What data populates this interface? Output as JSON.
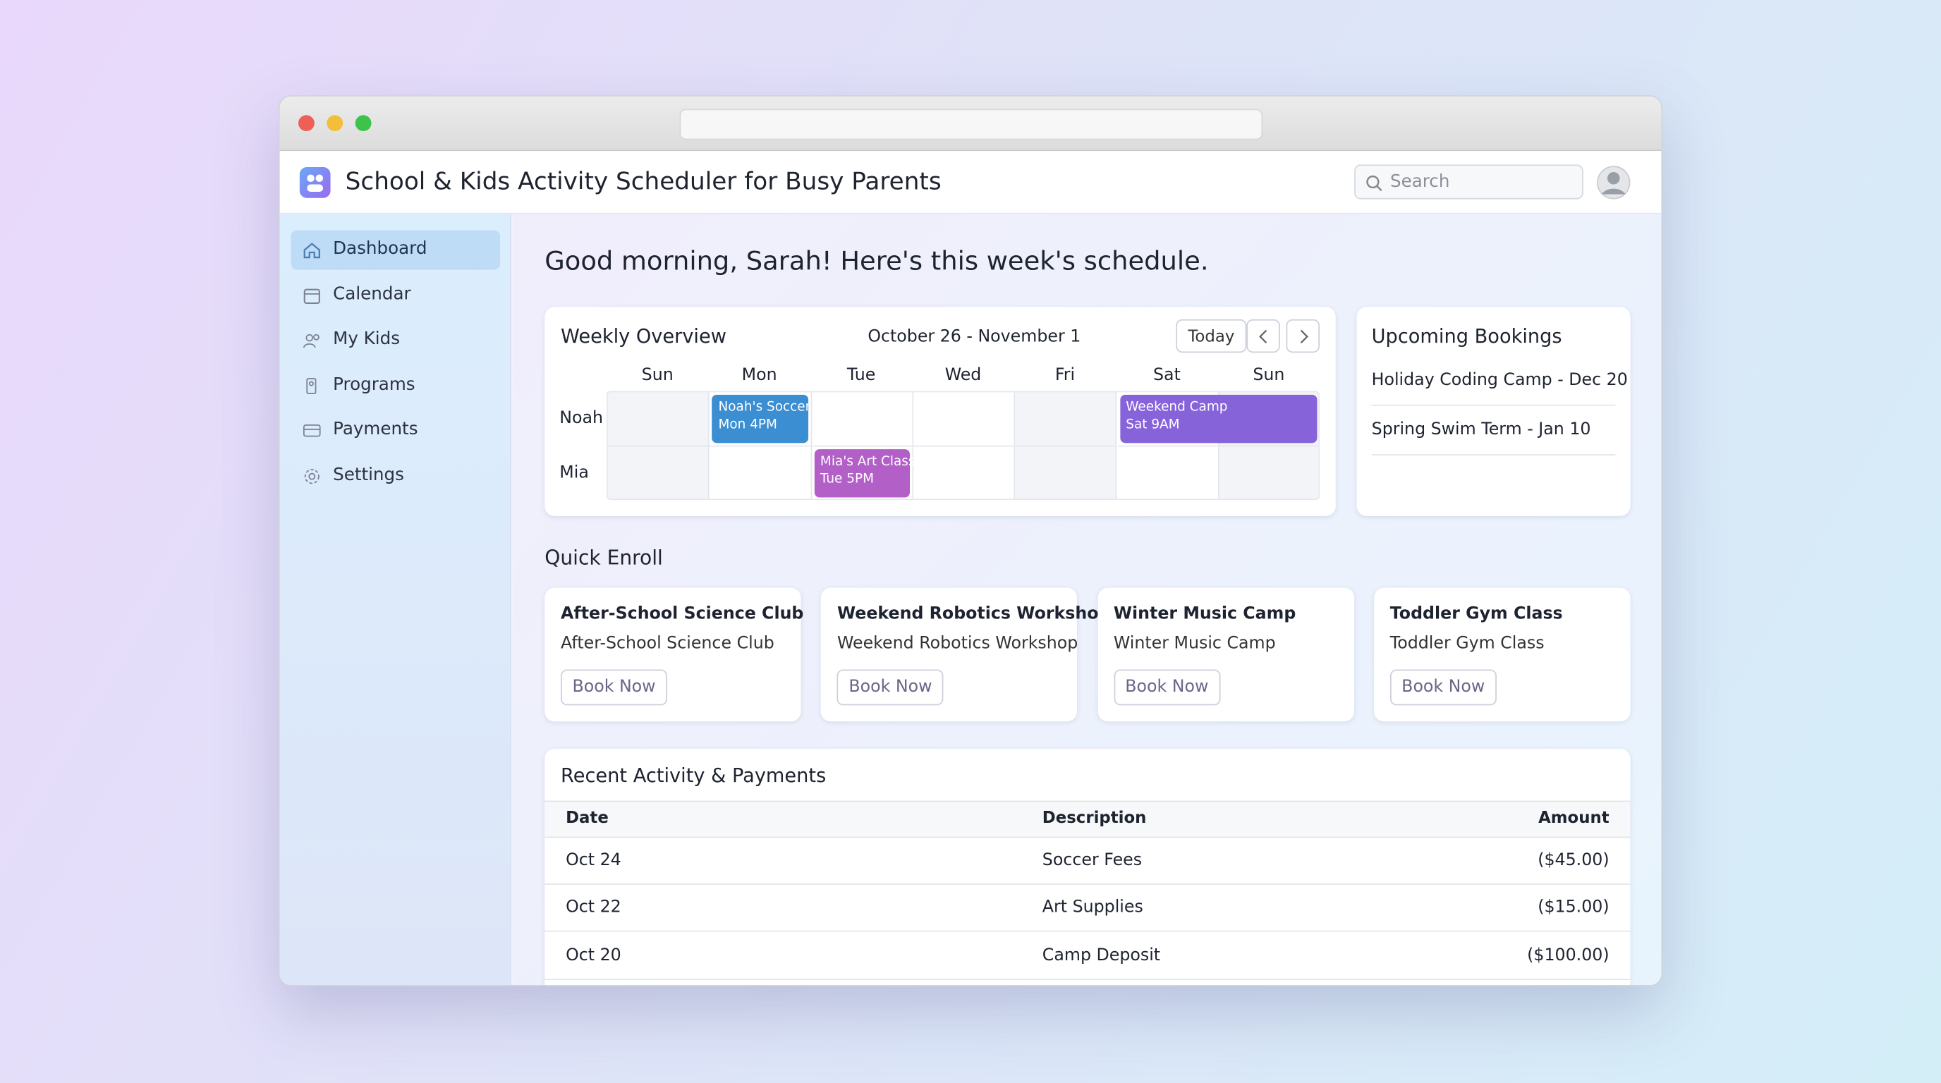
{
  "header": {
    "title": "School & Kids Activity Scheduler for Busy Parents",
    "search_placeholder": "Search"
  },
  "sidebar": {
    "items": [
      "Dashboard",
      "Calendar",
      "My Kids",
      "Programs",
      "Payments",
      "Settings"
    ]
  },
  "greeting": "Good morning, Sarah! Here's this week's schedule.",
  "weekly": {
    "title": "Weekly Overview",
    "range": "October 26 - November 1",
    "today": "Today",
    "days": [
      "Sun",
      "Mon",
      "Tue",
      "Wed",
      "Fri",
      "Sat",
      "Sun"
    ],
    "kids": [
      "Noah",
      "Mia"
    ],
    "events": [
      {
        "title": "Noah's Soccer",
        "time": "Mon 4PM"
      },
      {
        "title": "Weekend Camp",
        "time": "Sat 9AM"
      },
      {
        "title": "Mia's Art Class",
        "time": "Tue 5PM"
      }
    ]
  },
  "upcoming": {
    "title": "Upcoming Bookings",
    "items": [
      "Holiday Coding Camp - Dec 20",
      "Spring Swim Term - Jan 10"
    ]
  },
  "quick_enroll": {
    "title": "Quick Enroll",
    "cards": [
      {
        "title": "After-School Science Club",
        "subtitle": "After-School Science Club",
        "button": "Book Now"
      },
      {
        "title": "Weekend Robotics Workshop",
        "subtitle": "Weekend Robotics Workshop",
        "button": "Book Now"
      },
      {
        "title": "Winter Music Camp",
        "subtitle": "Winter Music Camp",
        "button": "Book Now"
      },
      {
        "title": "Toddler Gym Class",
        "subtitle": "Toddler Gym Class",
        "button": "Book Now"
      }
    ]
  },
  "recent": {
    "title": "Recent Activity & Payments",
    "columns": [
      "Date",
      "Description",
      "Amount"
    ],
    "rows": [
      [
        "Oct 24",
        "Soccer Fees",
        "($45.00)"
      ],
      [
        "Oct 22",
        "Art Supplies",
        "($15.00)"
      ],
      [
        "Oct 20",
        "Camp Deposit",
        "($100.00)"
      ]
    ]
  }
}
